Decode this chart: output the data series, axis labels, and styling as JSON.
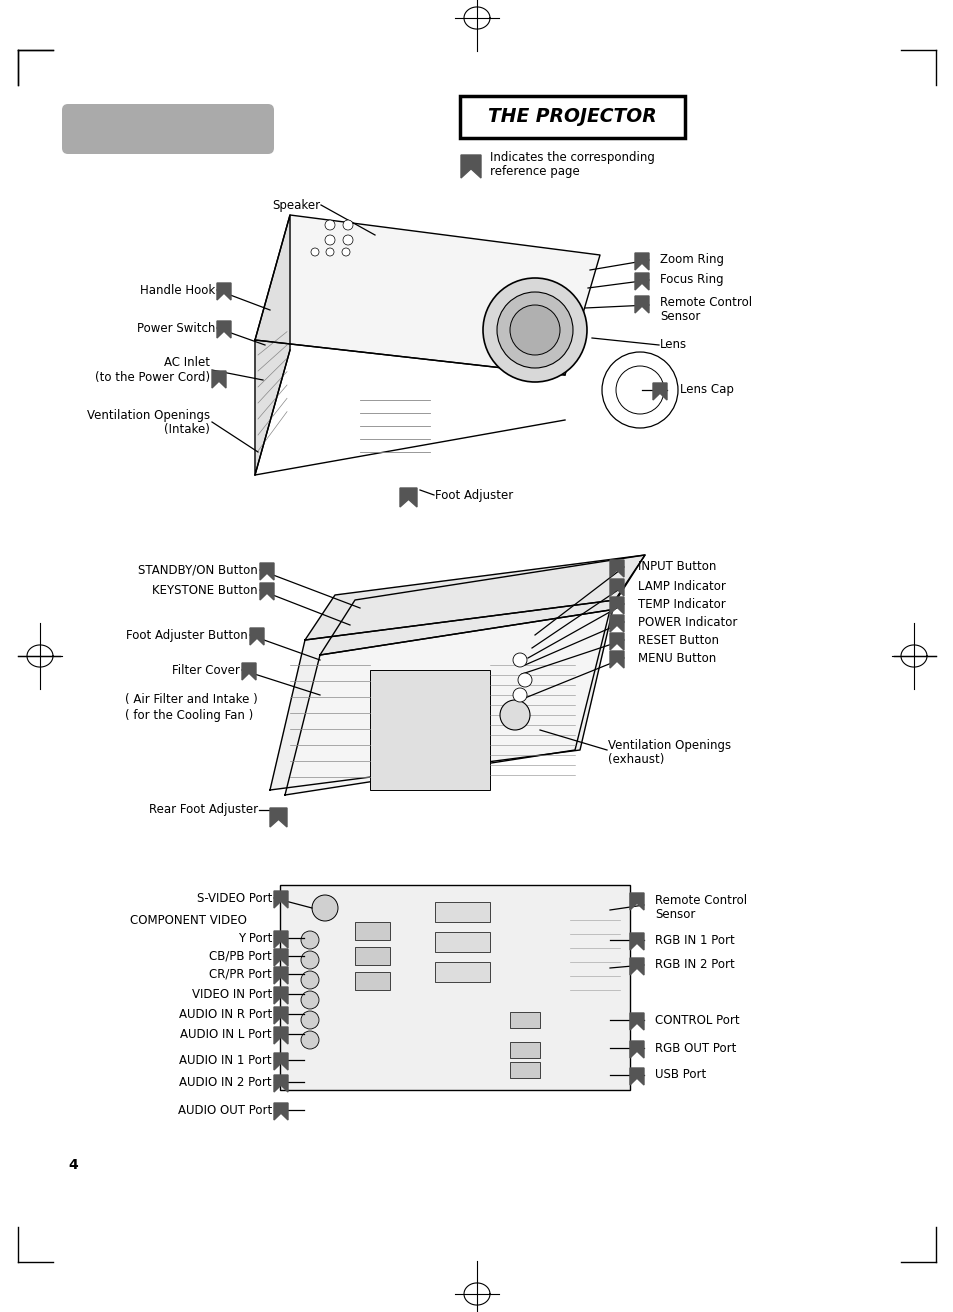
{
  "bg_color": "#ffffff",
  "page_number": "4",
  "fs": 8.5,
  "title": "THE PROJECTOR",
  "ref_text1": "Indicates the corresponding",
  "ref_text2": "reference page"
}
